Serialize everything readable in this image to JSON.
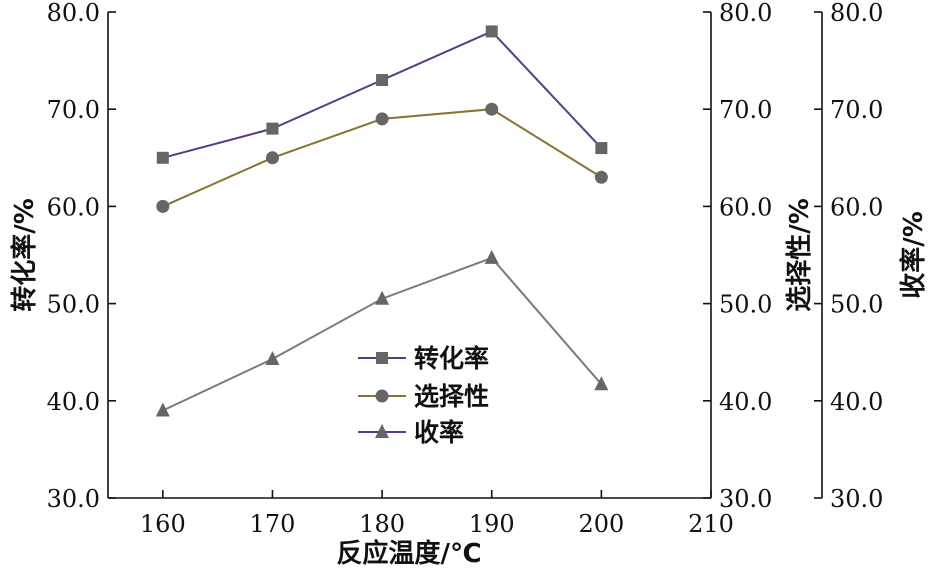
{
  "chart_data": {
    "type": "line",
    "x": [
      160,
      170,
      180,
      190,
      200
    ],
    "xlabel": "反应温度/℃",
    "xlim": [
      155,
      210
    ],
    "xticks": [
      "160",
      "170",
      "180",
      "190",
      "200",
      "210"
    ],
    "ylim": [
      30,
      80
    ],
    "yticks": [
      "30.0",
      "40.0",
      "50.0",
      "60.0",
      "70.0",
      "80.0"
    ],
    "axes": [
      {
        "id": "left",
        "label": "转化率/%"
      },
      {
        "id": "right1",
        "label": "选择性/%"
      },
      {
        "id": "right2",
        "label": "收率/%"
      }
    ],
    "series": [
      {
        "name": "转化率",
        "axis": "left",
        "marker": "square",
        "color": "#5b3b86",
        "values": [
          65,
          68,
          73,
          78,
          66
        ]
      },
      {
        "name": "选择性",
        "axis": "right1",
        "marker": "circle",
        "color": "#8a7230",
        "values": [
          60,
          65,
          69,
          70,
          63
        ]
      },
      {
        "name": "收率",
        "axis": "right2",
        "marker": "triangle",
        "color": "#7a7a7a",
        "values": [
          39,
          44.3,
          50.5,
          54.7,
          41.7
        ]
      }
    ],
    "marker_color": "#666666",
    "legend": "center"
  }
}
